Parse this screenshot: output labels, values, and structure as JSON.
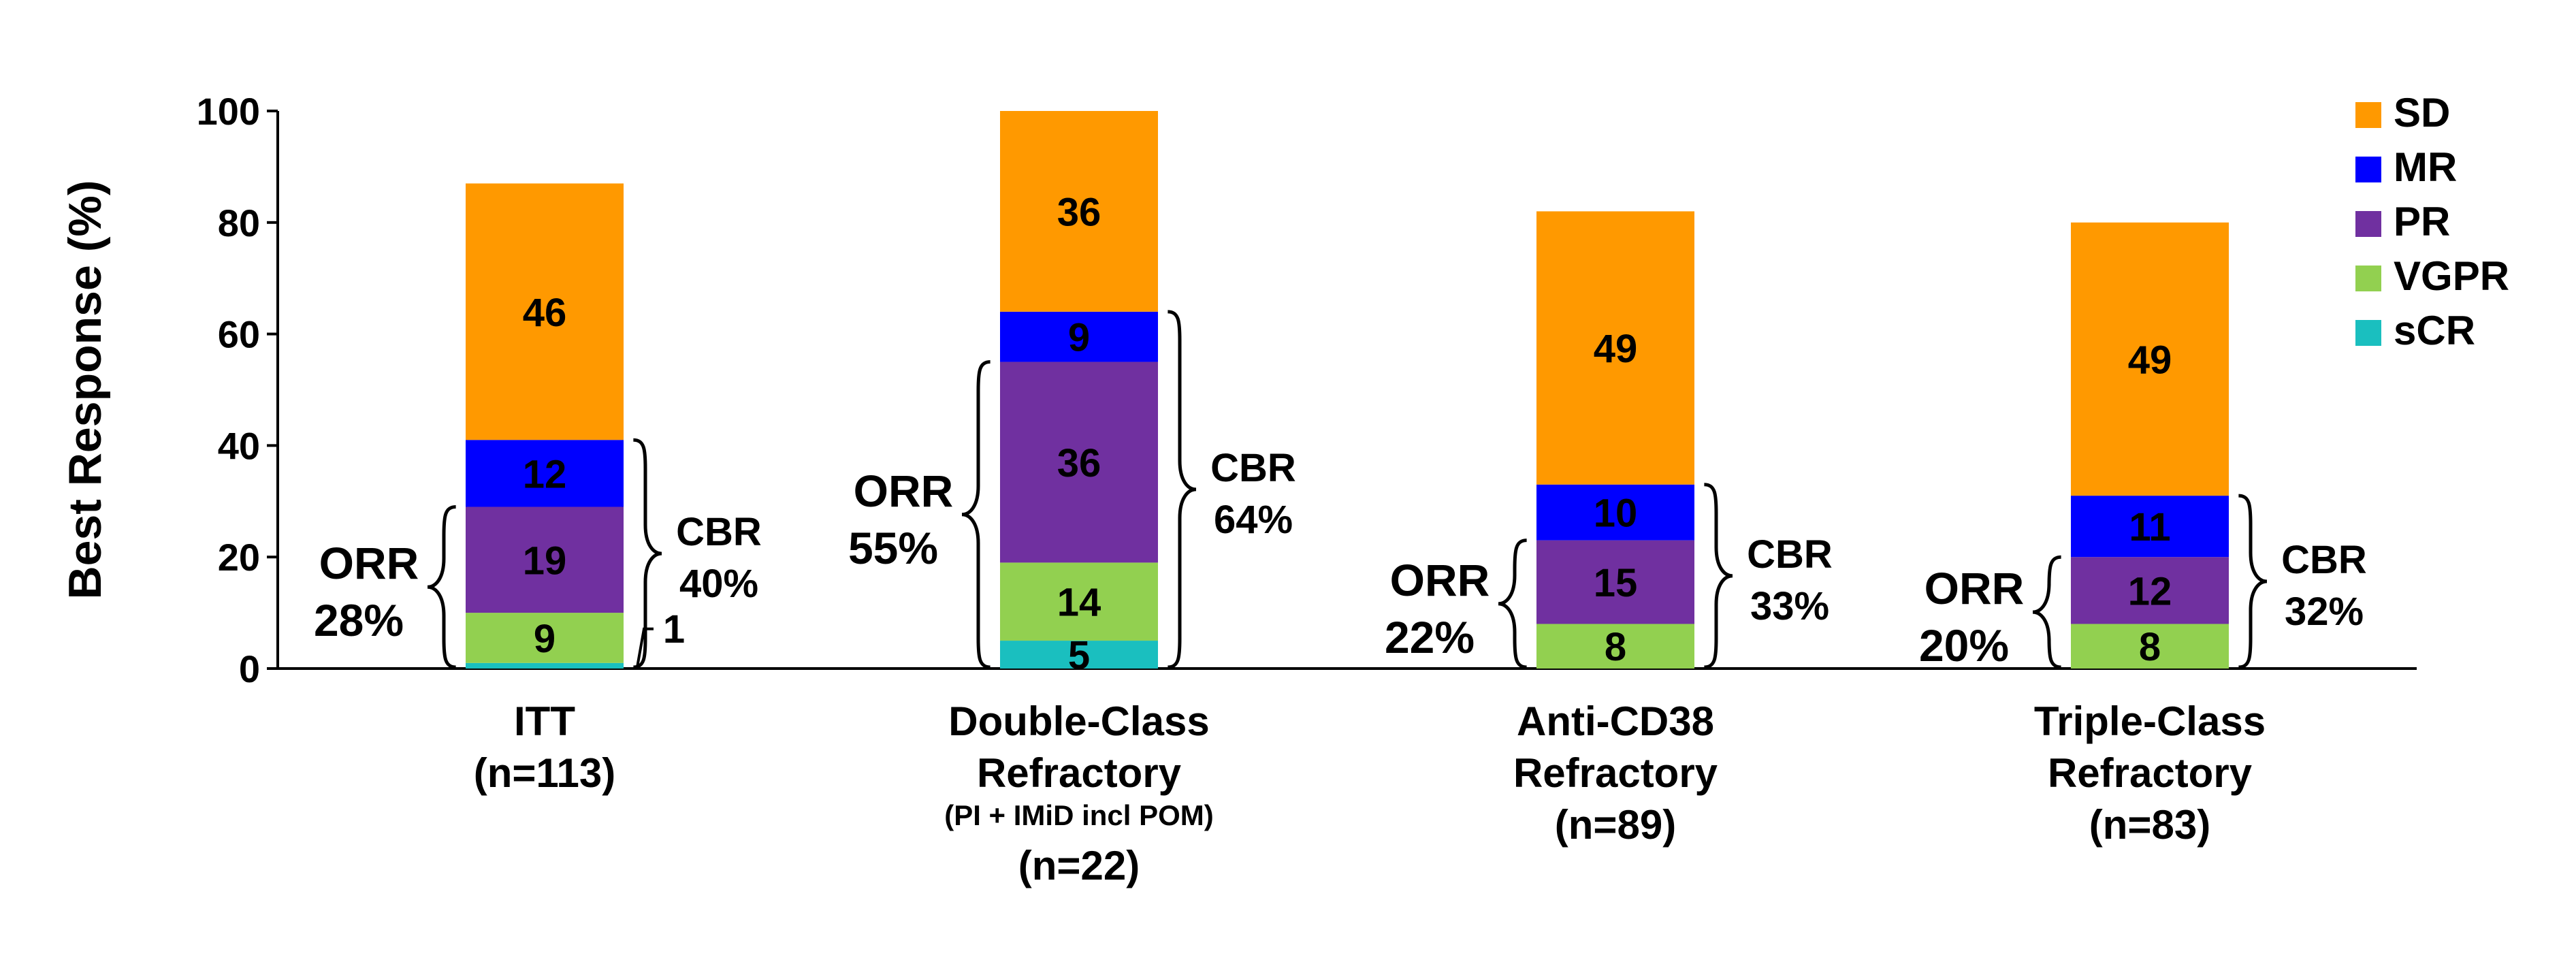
{
  "chart_data": {
    "type": "bar",
    "stacked": true,
    "ylabel": "Best Response (%)",
    "ylim": [
      0,
      100
    ],
    "yticks": [
      "0",
      "20",
      "40",
      "60",
      "80",
      "100"
    ],
    "grid": false,
    "legend_position": "top-right",
    "categories": [
      {
        "lines": [
          "ITT",
          "(n=113)"
        ],
        "note": "",
        "n_line": ""
      },
      {
        "lines": [
          "Double-Class",
          "Refractory"
        ],
        "note": "(PI + IMiD incl POM)",
        "n_line": "(n=22)"
      },
      {
        "lines": [
          "Anti-CD38",
          "Refractory",
          "(n=89)"
        ],
        "note": "",
        "n_line": ""
      },
      {
        "lines": [
          "Triple-Class",
          "Refractory",
          "(n=83)"
        ],
        "note": "",
        "n_line": ""
      }
    ],
    "series": [
      {
        "name": "sCR",
        "color": "#1ABFBF",
        "values": [
          1,
          5,
          0,
          0
        ],
        "labels": [
          "1",
          "5",
          "",
          ""
        ]
      },
      {
        "name": "VGPR",
        "color": "#92D050",
        "values": [
          9,
          14,
          8,
          8
        ],
        "labels": [
          "9",
          "14",
          "8",
          "8"
        ]
      },
      {
        "name": "PR",
        "color": "#7030A0",
        "values": [
          19,
          36,
          15,
          12
        ],
        "labels": [
          "19",
          "36",
          "15",
          "12"
        ]
      },
      {
        "name": "MR",
        "color": "#0000FF",
        "values": [
          12,
          9,
          10,
          11
        ],
        "labels": [
          "12",
          "9",
          "10",
          "11"
        ]
      },
      {
        "name": "SD",
        "color": "#FF9900",
        "values": [
          46,
          36,
          49,
          49
        ],
        "labels": [
          "46",
          "36",
          "49",
          "49"
        ]
      }
    ],
    "legend_order": [
      "SD",
      "MR",
      "PR",
      "VGPR",
      "sCR"
    ],
    "orr": [
      {
        "label": "ORR",
        "value": "28%"
      },
      {
        "label": "ORR",
        "value": "55%"
      },
      {
        "label": "ORR",
        "value": "22%"
      },
      {
        "label": "ORR",
        "value": "20%"
      }
    ],
    "cbr": [
      {
        "label": "CBR",
        "value": "40%"
      },
      {
        "label": "CBR",
        "value": "64%"
      },
      {
        "label": "CBR",
        "value": "33%"
      },
      {
        "label": "CBR",
        "value": "32%"
      }
    ]
  }
}
